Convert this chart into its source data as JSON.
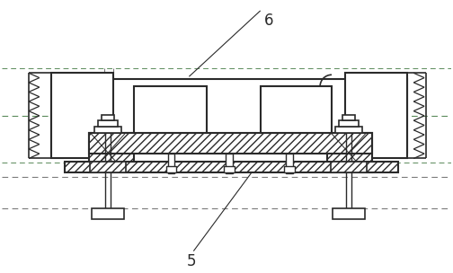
{
  "bg_color": "#ffffff",
  "line_color": "#2a2a2a",
  "dashed_color": "#7a7a7a",
  "green_dashed": "#5a8a5a",
  "label_6_text": "6",
  "label_5_text": "5",
  "figsize": [
    5.04,
    3.04
  ],
  "dpi": 100
}
